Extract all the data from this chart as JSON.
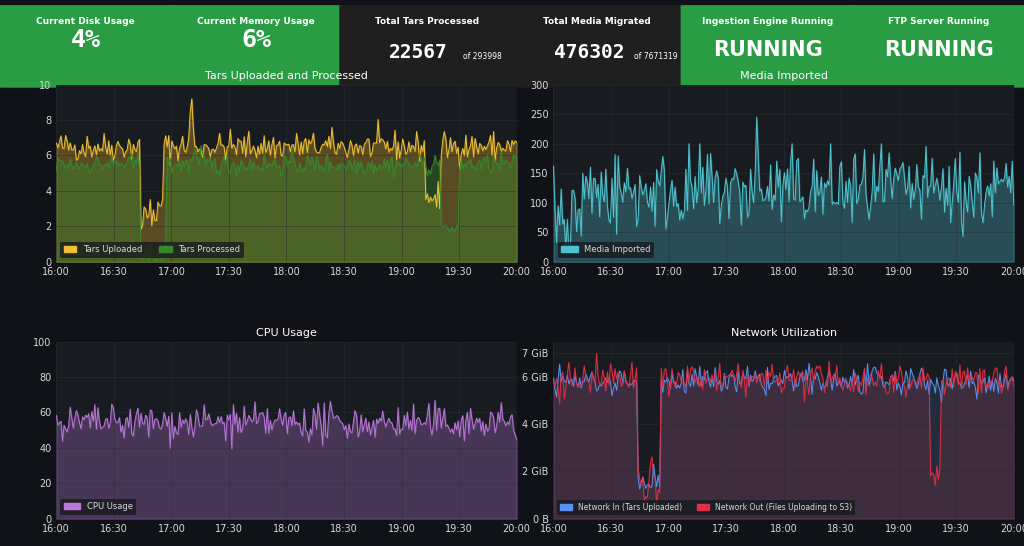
{
  "bg_color": "#111217",
  "panel_bg": "#181b1f",
  "green_bg": "#299c44",
  "title_color": "#ffffff",
  "text_color": "#d8d9da",
  "grid_color": "#2c2f33",
  "axis_color": "#444444",
  "stat_panels": [
    {
      "label": "Current Disk Usage",
      "value": "4%",
      "bg": "#299c44",
      "has_sparkline": true
    },
    {
      "label": "Current Memory Usage",
      "value": "6%",
      "bg": "#299c44",
      "has_sparkline": true
    },
    {
      "label": "Total Tars Processed",
      "value": "22567",
      "sub": "of 293998",
      "bg": "#1f1f1f"
    },
    {
      "label": "Total Media Migrated",
      "value": "476302",
      "sub": "of 7671319",
      "bg": "#1f1f1f"
    },
    {
      "label": "Ingestion Engine Running",
      "value": "RUNNING",
      "bg": "#299c44"
    },
    {
      "label": "FTP Server Running",
      "value": "RUNNING",
      "bg": "#299c44"
    }
  ],
  "tars_title": "Tars Uploaded and Processed",
  "tars_ylim": [
    0,
    10
  ],
  "tars_yticks": [
    0,
    2,
    4,
    6,
    8,
    10
  ],
  "tars_uploaded_color": "#f0c030",
  "tars_processed_color": "#37872d",
  "media_title": "Media Imported",
  "media_ylim": [
    0,
    300
  ],
  "media_yticks": [
    0,
    50,
    100,
    150,
    200,
    250,
    300
  ],
  "media_color": "#4fc4cf",
  "cpu_title": "CPU Usage",
  "cpu_ylim": [
    0,
    100
  ],
  "cpu_yticks": [
    0,
    20,
    40,
    60,
    80,
    100
  ],
  "cpu_color": "#b877d9",
  "net_title": "Network Utilization",
  "net_yticks_labels": [
    "0 B",
    "2 GiB",
    "4 GiB",
    "6 GiB",
    "7 GiB"
  ],
  "net_in_color": "#5794f2",
  "net_out_color": "#e02f44",
  "time_ticks_short": [
    "16:00",
    "16:30",
    "17:00",
    "17:30",
    "18:00",
    "18:30",
    "19:00",
    "19:30",
    "20:00"
  ]
}
